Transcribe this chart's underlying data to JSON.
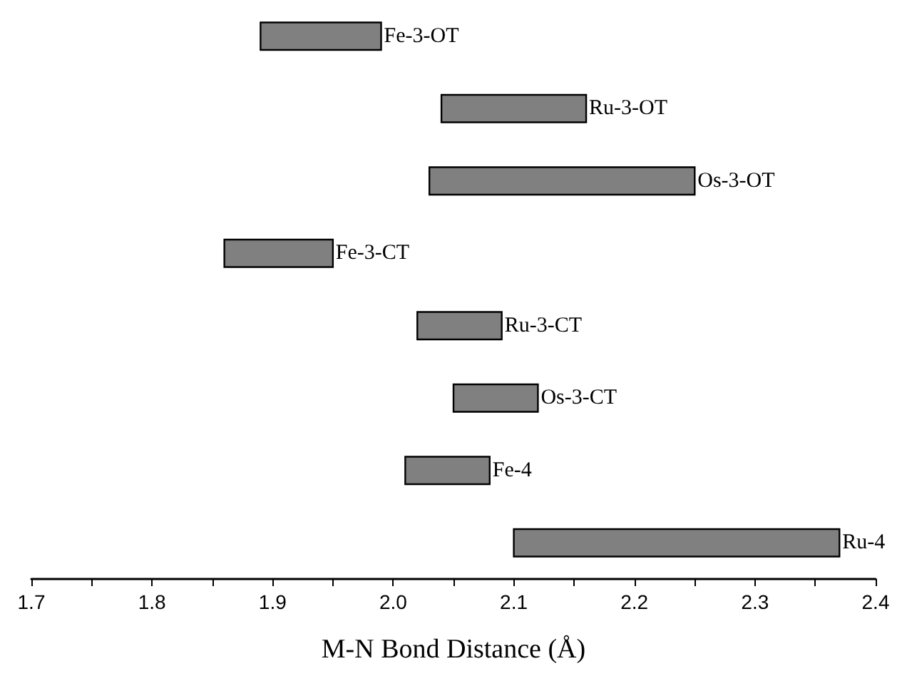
{
  "chart_data": {
    "type": "bar",
    "orientation": "horizontal",
    "xlabel": "M-N Bond Distance (Å)",
    "categories": [
      "Fe-3-OT",
      "Ru-3-OT",
      "Os-3-OT",
      "Fe-3-CT",
      "Ru-3-CT",
      "Os-3-CT",
      "Fe-4",
      "Ru-4"
    ],
    "base": [
      1.89,
      2.04,
      2.03,
      1.86,
      2.02,
      2.05,
      2.01,
      2.1
    ],
    "values": [
      0.1,
      0.12,
      0.22,
      0.09,
      0.07,
      0.07,
      0.07,
      0.27
    ],
    "color": "#808080",
    "xlim": [
      1.7,
      2.4
    ],
    "xticks": [
      1.7,
      {
        "value": 1.75,
        "label": null
      },
      1.8,
      {
        "value": 1.85,
        "label": null
      },
      1.9,
      {
        "value": 1.95,
        "label": null
      },
      "2.0",
      {
        "value": 2.05,
        "label": null
      },
      2.1,
      {
        "value": 2.15,
        "label": null
      },
      2.2,
      {
        "value": 2.25,
        "label": null
      },
      2.3,
      {
        "value": 2.35,
        "label": null
      },
      2.4
    ],
    "tick_labels": "x",
    "grid": false
  }
}
